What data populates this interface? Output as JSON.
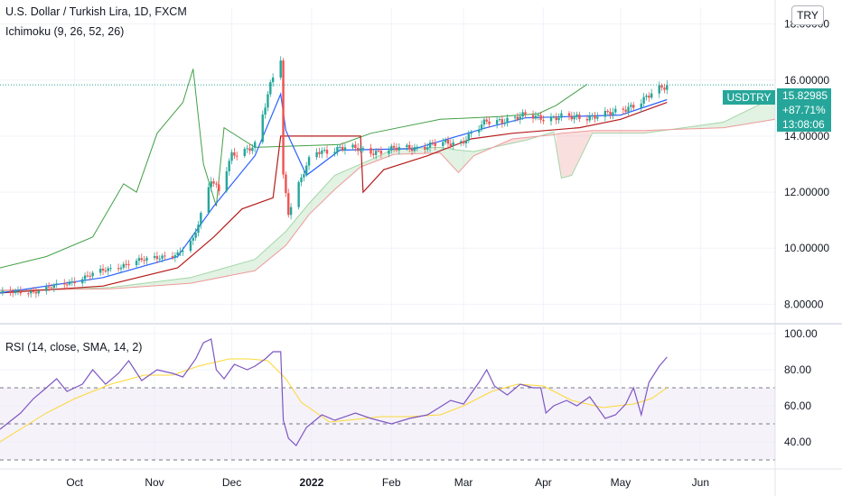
{
  "header": {
    "symbol_title": "U.S. Dollar / Turkish Lira, 1D, FXCM",
    "indicator_label": "Ichimoku (9, 26, 52, 26)",
    "currency_button": "TRY"
  },
  "price_badge": {
    "symbol": "USDTRY",
    "last_price": "15.82985",
    "change_pct": "+87.71%",
    "countdown": "13:08:06"
  },
  "rsi_panel": {
    "label": "RSI (14, close, SMA, 14, 2)"
  },
  "colors": {
    "up": "#26a69a",
    "down": "#ef5350",
    "conversion": "#2962ff",
    "base": "#b71c1c",
    "lagging": "#43a047",
    "span_a": "#a5d6a7",
    "span_b": "#ef9a9a",
    "rsi": "#7e57c2",
    "rsi_ma": "#fdd835",
    "rsi_band": "#ede7f6"
  },
  "chart_data": [
    {
      "type": "candlestick",
      "title": "U.S. Dollar / Turkish Lira, 1D, FXCM",
      "x_axis": {
        "type": "date",
        "range": [
          "2021-09-02",
          "2022-06-30"
        ],
        "ticks": [
          {
            "date": "2021-10-01",
            "label": "Oct",
            "bold": false
          },
          {
            "date": "2021-11-01",
            "label": "Nov",
            "bold": false
          },
          {
            "date": "2021-12-01",
            "label": "Dec",
            "bold": false
          },
          {
            "date": "2022-01-01",
            "label": "2022",
            "bold": true
          },
          {
            "date": "2022-02-01",
            "label": "Feb",
            "bold": false
          },
          {
            "date": "2022-03-01",
            "label": "Mar",
            "bold": false
          },
          {
            "date": "2022-04-01",
            "label": "Apr",
            "bold": false
          },
          {
            "date": "2022-05-01",
            "label": "May",
            "bold": false
          },
          {
            "date": "2022-06-01",
            "label": "Jun",
            "bold": false
          }
        ]
      },
      "y_axis": {
        "range": [
          7.4,
          18.6
        ],
        "ticks": [
          8,
          10,
          12,
          14,
          16,
          18
        ],
        "tick_labels": [
          "8.00000",
          "10.00000",
          "12.00000",
          "14.00000",
          "16.00000",
          "18.00000"
        ]
      },
      "last_price": 15.82985,
      "close_path": [
        [
          "2021-09-02",
          8.4
        ],
        [
          "2021-09-15",
          8.45
        ],
        [
          "2021-09-28",
          8.75
        ],
        [
          "2021-10-12",
          9.2
        ],
        [
          "2021-10-22",
          9.45
        ],
        [
          "2021-11-02",
          9.7
        ],
        [
          "2021-11-10",
          9.75
        ],
        [
          "2021-11-16",
          10.3
        ],
        [
          "2021-11-23",
          12.5
        ],
        [
          "2021-11-26",
          12.0
        ],
        [
          "2021-12-01",
          13.3
        ],
        [
          "2021-12-10",
          13.7
        ],
        [
          "2021-12-17",
          16.1
        ],
        [
          "2021-12-20",
          16.8
        ],
        [
          "2021-12-21",
          12.6
        ],
        [
          "2021-12-23",
          11.3
        ],
        [
          "2021-12-27",
          12.3
        ],
        [
          "2022-01-01",
          13.3
        ],
        [
          "2022-01-03",
          13.4
        ],
        [
          "2022-01-12",
          13.6
        ],
        [
          "2022-01-25",
          13.45
        ],
        [
          "2022-02-10",
          13.6
        ],
        [
          "2022-02-28",
          13.8
        ],
        [
          "2022-03-10",
          14.5
        ],
        [
          "2022-03-25",
          14.7
        ],
        [
          "2022-04-12",
          14.65
        ],
        [
          "2022-04-28",
          14.8
        ],
        [
          "2022-05-10",
          15.3
        ],
        [
          "2022-05-19",
          15.83
        ]
      ],
      "ichimoku": {
        "params": [
          9,
          26,
          52,
          26
        ],
        "conversion_line": [
          [
            "2021-09-02",
            8.4
          ],
          [
            "2021-10-12",
            8.95
          ],
          [
            "2021-11-10",
            9.7
          ],
          [
            "2021-11-24",
            11.5
          ],
          [
            "2021-12-10",
            13.3
          ],
          [
            "2021-12-20",
            15.5
          ],
          [
            "2021-12-22",
            14.2
          ],
          [
            "2021-12-30",
            12.6
          ],
          [
            "2022-01-12",
            13.5
          ],
          [
            "2022-02-10",
            13.55
          ],
          [
            "2022-03-10",
            14.3
          ],
          [
            "2022-03-25",
            14.65
          ],
          [
            "2022-04-12",
            14.7
          ],
          [
            "2022-05-01",
            14.75
          ],
          [
            "2022-05-19",
            15.3
          ]
        ],
        "base_line": [
          [
            "2021-09-02",
            8.4
          ],
          [
            "2021-10-12",
            8.65
          ],
          [
            "2021-11-10",
            9.3
          ],
          [
            "2021-11-24",
            10.4
          ],
          [
            "2021-12-05",
            11.4
          ],
          [
            "2021-12-17",
            11.8
          ],
          [
            "2021-12-20",
            14.0
          ],
          [
            "2022-01-20",
            14.0
          ],
          [
            "2022-01-21",
            12.0
          ],
          [
            "2022-01-29",
            12.8
          ],
          [
            "2022-02-15",
            13.3
          ],
          [
            "2022-03-04",
            13.9
          ],
          [
            "2022-03-20",
            14.1
          ],
          [
            "2022-04-15",
            14.3
          ],
          [
            "2022-05-01",
            14.6
          ],
          [
            "2022-05-19",
            15.2
          ]
        ],
        "lagging_span": [
          [
            "2021-09-02",
            9.3
          ],
          [
            "2021-09-20",
            9.7
          ],
          [
            "2021-10-08",
            10.4
          ],
          [
            "2021-10-20",
            12.3
          ],
          [
            "2021-10-25",
            12.0
          ],
          [
            "2021-11-02",
            14.1
          ],
          [
            "2021-11-12",
            15.2
          ],
          [
            "2021-11-16",
            16.4
          ],
          [
            "2021-11-20",
            13.0
          ],
          [
            "2021-11-25",
            11.5
          ],
          [
            "2021-11-28",
            14.3
          ],
          [
            "2021-12-10",
            13.6
          ],
          [
            "2022-01-12",
            13.7
          ],
          [
            "2022-01-24",
            14.1
          ],
          [
            "2022-02-20",
            14.6
          ],
          [
            "2022-03-15",
            14.7
          ],
          [
            "2022-03-30",
            14.8
          ],
          [
            "2022-04-06",
            15.1
          ],
          [
            "2022-04-18",
            15.85
          ]
        ],
        "leading_span_a": [
          [
            "2021-09-02",
            8.45
          ],
          [
            "2021-10-15",
            8.6
          ],
          [
            "2021-11-15",
            8.95
          ],
          [
            "2021-12-10",
            9.6
          ],
          [
            "2021-12-22",
            10.6
          ],
          [
            "2021-12-31",
            11.6
          ],
          [
            "2022-01-10",
            12.6
          ],
          [
            "2022-01-25",
            13.2
          ],
          [
            "2022-02-02",
            13.55
          ],
          [
            "2022-02-20",
            13.6
          ],
          [
            "2022-02-27",
            13.5
          ],
          [
            "2022-03-05",
            13.45
          ],
          [
            "2022-03-25",
            13.85
          ],
          [
            "2022-04-05",
            14.15
          ],
          [
            "2022-04-08",
            12.5
          ],
          [
            "2022-04-12",
            12.6
          ],
          [
            "2022-04-20",
            14.1
          ],
          [
            "2022-05-10",
            14.1
          ],
          [
            "2022-06-10",
            14.5
          ],
          [
            "2022-06-30",
            15.4
          ]
        ],
        "leading_span_b": [
          [
            "2021-09-02",
            8.5
          ],
          [
            "2021-10-15",
            8.55
          ],
          [
            "2021-11-15",
            8.75
          ],
          [
            "2021-12-10",
            9.2
          ],
          [
            "2021-12-22",
            10.1
          ],
          [
            "2021-12-31",
            11.2
          ],
          [
            "2022-01-10",
            12.1
          ],
          [
            "2022-01-20",
            12.9
          ],
          [
            "2022-02-02",
            13.35
          ],
          [
            "2022-02-20",
            13.4
          ],
          [
            "2022-02-27",
            12.7
          ],
          [
            "2022-03-05",
            13.3
          ],
          [
            "2022-03-20",
            13.9
          ],
          [
            "2022-04-05",
            14.05
          ],
          [
            "2022-04-08",
            14.1
          ],
          [
            "2022-04-20",
            14.2
          ],
          [
            "2022-05-10",
            14.2
          ],
          [
            "2022-06-10",
            14.3
          ],
          [
            "2022-06-30",
            14.6
          ]
        ]
      }
    },
    {
      "type": "line",
      "title": "RSI (14, close, SMA, 14, 2)",
      "y_axis": {
        "range": [
          28,
          104
        ],
        "ticks": [
          40,
          60,
          80,
          100
        ],
        "tick_labels": [
          "40.00",
          "60.00",
          "80.00",
          "100.00"
        ]
      },
      "bands": {
        "upper": 70,
        "middle": 50,
        "lower": 30
      },
      "series": [
        {
          "key": "rsi",
          "points": [
            [
              "2021-09-02",
              47
            ],
            [
              "2021-09-10",
              56
            ],
            [
              "2021-09-15",
              64
            ],
            [
              "2021-09-20",
              70
            ],
            [
              "2021-09-24",
              75
            ],
            [
              "2021-09-28",
              68
            ],
            [
              "2021-10-04",
              72
            ],
            [
              "2021-10-08",
              80
            ],
            [
              "2021-10-13",
              72
            ],
            [
              "2021-10-18",
              78
            ],
            [
              "2021-10-22",
              85
            ],
            [
              "2021-10-27",
              74
            ],
            [
              "2021-11-02",
              80
            ],
            [
              "2021-11-08",
              78
            ],
            [
              "2021-11-12",
              76
            ],
            [
              "2021-11-17",
              86
            ],
            [
              "2021-11-20",
              95
            ],
            [
              "2021-11-23",
              97
            ],
            [
              "2021-11-25",
              80
            ],
            [
              "2021-11-28",
              75
            ],
            [
              "2021-12-02",
              83
            ],
            [
              "2021-12-07",
              80
            ],
            [
              "2021-12-10",
              82
            ],
            [
              "2021-12-14",
              86
            ],
            [
              "2021-12-17",
              90
            ],
            [
              "2021-12-20",
              90
            ],
            [
              "2021-12-21",
              52
            ],
            [
              "2021-12-23",
              42
            ],
            [
              "2021-12-26",
              38
            ],
            [
              "2021-12-30",
              48
            ],
            [
              "2022-01-05",
              55
            ],
            [
              "2022-01-10",
              52
            ],
            [
              "2022-01-18",
              56
            ],
            [
              "2022-01-24",
              53
            ],
            [
              "2022-02-01",
              50
            ],
            [
              "2022-02-08",
              53
            ],
            [
              "2022-02-15",
              55
            ],
            [
              "2022-02-24",
              63
            ],
            [
              "2022-03-01",
              61
            ],
            [
              "2022-03-07",
              73
            ],
            [
              "2022-03-10",
              80
            ],
            [
              "2022-03-13",
              71
            ],
            [
              "2022-03-18",
              66
            ],
            [
              "2022-03-23",
              72
            ],
            [
              "2022-03-28",
              70
            ],
            [
              "2022-03-31",
              70
            ],
            [
              "2022-04-02",
              56
            ],
            [
              "2022-04-05",
              60
            ],
            [
              "2022-04-10",
              63
            ],
            [
              "2022-04-14",
              60
            ],
            [
              "2022-04-19",
              65
            ],
            [
              "2022-04-25",
              53
            ],
            [
              "2022-04-29",
              55
            ],
            [
              "2022-05-03",
              61
            ],
            [
              "2022-05-06",
              70
            ],
            [
              "2022-05-09",
              55
            ],
            [
              "2022-05-12",
              73
            ],
            [
              "2022-05-16",
              82
            ],
            [
              "2022-05-19",
              87
            ]
          ]
        },
        {
          "key": "rsi_ma",
          "points": [
            [
              "2021-09-02",
              40
            ],
            [
              "2021-09-20",
              56
            ],
            [
              "2021-10-01",
              64
            ],
            [
              "2021-10-15",
              72
            ],
            [
              "2021-10-28",
              77
            ],
            [
              "2021-11-08",
              77
            ],
            [
              "2021-11-18",
              82
            ],
            [
              "2021-11-30",
              86
            ],
            [
              "2021-12-08",
              86
            ],
            [
              "2021-12-15",
              85
            ],
            [
              "2021-12-22",
              75
            ],
            [
              "2021-12-28",
              62
            ],
            [
              "2022-01-08",
              51
            ],
            [
              "2022-01-15",
              52
            ],
            [
              "2022-01-28",
              54
            ],
            [
              "2022-02-08",
              54
            ],
            [
              "2022-02-20",
              55
            ],
            [
              "2022-03-01",
              60
            ],
            [
              "2022-03-12",
              68
            ],
            [
              "2022-03-22",
              72
            ],
            [
              "2022-04-01",
              71
            ],
            [
              "2022-04-12",
              63
            ],
            [
              "2022-04-24",
              59
            ],
            [
              "2022-05-06",
              61
            ],
            [
              "2022-05-13",
              64
            ],
            [
              "2022-05-19",
              70
            ]
          ]
        }
      ]
    }
  ]
}
